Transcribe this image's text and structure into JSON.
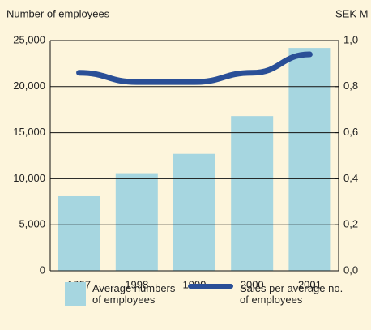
{
  "chart_data": {
    "type": "bar",
    "y_label": "Number of employees",
    "y2_label": "SEK M",
    "categories": [
      "1997",
      "1998",
      "1999",
      "2000",
      "2001"
    ],
    "series": [
      {
        "name": "Average numbers of employees",
        "type": "bar",
        "color": "#a6d6e0",
        "values": [
          8100,
          10600,
          12700,
          16800,
          24200
        ]
      },
      {
        "name": "Sales per average no. of employees",
        "type": "line",
        "axis": "y2",
        "color": "#2a4f97",
        "values": [
          0.86,
          0.82,
          0.82,
          0.86,
          0.94
        ]
      }
    ],
    "ylim": [
      0,
      25000
    ],
    "yticks": [
      0,
      {
        "value": 5000,
        "label": "5,000"
      },
      {
        "value": 10000,
        "label": "10,000"
      },
      {
        "value": 15000,
        "label": "15,000"
      },
      {
        "value": 20000,
        "label": "20,000"
      },
      {
        "value": 25000,
        "label": "25,000"
      }
    ],
    "y2lim": [
      0,
      1
    ],
    "y2ticks": [
      {
        "value": 0,
        "label": "0,0"
      },
      {
        "value": 0.2,
        "label": "0,2"
      },
      {
        "value": 0.4,
        "label": "0,4"
      },
      {
        "value": 0.6,
        "label": "0,6"
      },
      {
        "value": 0.8,
        "label": "0,8"
      },
      {
        "value": 1,
        "label": "1,0"
      }
    ],
    "grid": true
  }
}
